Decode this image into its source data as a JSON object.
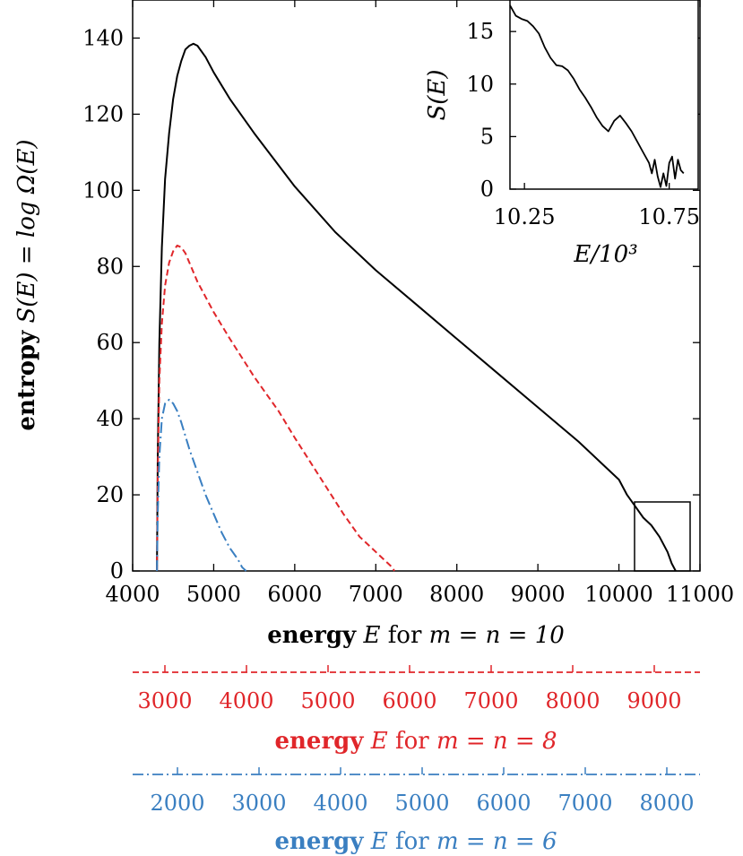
{
  "chart_data": [
    {
      "type": "line",
      "ylabel": {
        "bold": "entropy",
        "math": "S(E) = log Ω(E)"
      },
      "xlabel": {
        "bold": "energy",
        "math_e": "E",
        "mid": "for",
        "math_mn": "m = n = 10"
      },
      "xlim": [
        4000,
        11000
      ],
      "ylim": [
        0,
        150
      ],
      "xticks": [
        4000,
        5000,
        6000,
        7000,
        8000,
        9000,
        10000,
        11000
      ],
      "yticks": [
        0,
        20,
        40,
        60,
        80,
        100,
        120,
        140
      ],
      "series": [
        {
          "id": "m10",
          "color": "#000000",
          "dash": "solid",
          "x": [
            4300,
            4310,
            4330,
            4360,
            4400,
            4450,
            4500,
            4550,
            4600,
            4650,
            4700,
            4750,
            4800,
            4900,
            5000,
            5200,
            5500,
            6000,
            6500,
            7000,
            7500,
            8000,
            8500,
            9000,
            9500,
            9800,
            10000,
            10100,
            10200,
            10300,
            10400,
            10500,
            10600,
            10650,
            10700
          ],
          "y": [
            0,
            30,
            60,
            85,
            103,
            115,
            124,
            130,
            134,
            137,
            138,
            138.5,
            138,
            135,
            131,
            124,
            115,
            101,
            89,
            79,
            70,
            61,
            52,
            43,
            34,
            28,
            24,
            20,
            17,
            14,
            12,
            9,
            5,
            2,
            0
          ]
        },
        {
          "id": "m8",
          "color": "#e0262a",
          "dash": "7,4",
          "x": [
            4300,
            4310,
            4330,
            4360,
            4400,
            4450,
            4500,
            4550,
            4600,
            4650,
            4700,
            4800,
            5000,
            5200,
            5500,
            5800,
            6000,
            6300,
            6600,
            6800,
            6950,
            7050,
            7150,
            7200,
            7230
          ],
          "y": [
            0,
            25,
            50,
            65,
            75,
            81,
            84,
            85.5,
            85,
            83.5,
            81,
            76,
            68,
            61,
            51,
            42,
            35,
            25,
            15,
            9,
            6,
            4,
            2,
            1,
            0
          ]
        },
        {
          "id": "m6",
          "color": "#3a7fc1",
          "dash": "12,4,2,4",
          "x": [
            4300,
            4310,
            4330,
            4360,
            4400,
            4450,
            4500,
            4550,
            4600,
            4700,
            4800,
            4900,
            5000,
            5100,
            5200,
            5300,
            5350,
            5400
          ],
          "y": [
            0,
            15,
            30,
            40,
            44,
            45,
            44,
            42,
            39,
            32,
            26,
            20,
            15,
            10,
            6,
            3,
            1,
            0
          ]
        }
      ]
    },
    {
      "type": "line",
      "role": "inset",
      "ylabel": "S(E)",
      "xlabel": "E/10³",
      "xlim": [
        10.2,
        10.85
      ],
      "ylim": [
        0,
        18
      ],
      "xticks": [
        10.25,
        10.75
      ],
      "yticks": [
        0,
        5,
        10,
        15
      ],
      "series": [
        {
          "id": "m10-tail",
          "color": "#000000",
          "dash": "solid",
          "x": [
            10.2,
            10.22,
            10.24,
            10.26,
            10.28,
            10.3,
            10.32,
            10.34,
            10.36,
            10.38,
            10.4,
            10.42,
            10.44,
            10.46,
            10.48,
            10.5,
            10.52,
            10.54,
            10.56,
            10.58,
            10.6,
            10.62,
            10.64,
            10.66,
            10.68,
            10.69,
            10.7,
            10.71,
            10.72,
            10.73,
            10.74,
            10.75,
            10.76,
            10.77,
            10.78,
            10.79,
            10.8
          ],
          "y": [
            17.5,
            16.5,
            16.2,
            16,
            15.5,
            14.8,
            13.5,
            12.5,
            11.8,
            11.7,
            11.3,
            10.5,
            9.5,
            8.7,
            7.8,
            6.8,
            6,
            5.5,
            6.5,
            7,
            6.3,
            5.5,
            4.5,
            3.5,
            2.5,
            1.5,
            2.8,
            1.2,
            0.2,
            1.5,
            0.3,
            2.5,
            3.1,
            1.0,
            2.8,
            1.8,
            1.5
          ]
        }
      ]
    },
    {
      "type": "axis",
      "role": "secondary-x",
      "color": "#e0262a",
      "xticks": [
        3000,
        4000,
        5000,
        6000,
        7000,
        8000,
        9000
      ],
      "xlabel": {
        "bold": "energy",
        "math_e": "E",
        "mid": "for",
        "math_mn": "m = n = 8"
      }
    },
    {
      "type": "axis",
      "role": "secondary-x",
      "color": "#3a7fc1",
      "xticks": [
        2000,
        3000,
        4000,
        5000,
        6000,
        7000,
        8000
      ],
      "xlabel": {
        "bold": "energy",
        "math_e": "E",
        "mid": "for",
        "math_mn": "m = n = 6"
      }
    }
  ]
}
